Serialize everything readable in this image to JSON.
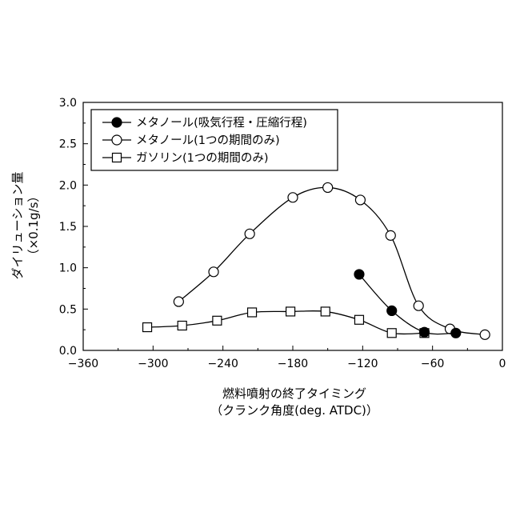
{
  "chart_data": {
    "type": "line",
    "title": "",
    "xlabel": "燃料噴射の終了タイミング",
    "xlabel_sub": "（クランク角度(deg. ATDC)）",
    "ylabel": "ダイリューション量",
    "ylabel_sub": "（×0.1g/s）",
    "xlim": [
      -360,
      0
    ],
    "ylim": [
      0,
      3.0
    ],
    "x_ticks": [
      -360,
      -300,
      -240,
      -180,
      -120,
      -60,
      0
    ],
    "x_tick_labels": [
      "−360",
      "−300",
      "−240",
      "−180",
      "−120",
      "−60",
      "0"
    ],
    "y_ticks": [
      0,
      0.5,
      1.0,
      1.5,
      2.0,
      2.5,
      3.0
    ],
    "y_tick_labels": [
      "0.0",
      "0.5",
      "1.0",
      "1.5",
      "2.0",
      "2.5",
      "3.0"
    ],
    "grid": false,
    "legend_position": "top-left",
    "series": [
      {
        "name": "メタノール(吸気行程・圧縮行程)",
        "marker": "filled-circle",
        "x": [
          -123,
          -95,
          -67,
          -40
        ],
        "y": [
          0.92,
          0.48,
          0.22,
          0.21
        ]
      },
      {
        "name": "メタノール(1つの期間のみ)",
        "marker": "open-circle",
        "x": [
          -278,
          -248,
          -217,
          -180,
          -150,
          -122,
          -96,
          -72,
          -45,
          -15
        ],
        "y": [
          0.59,
          0.95,
          1.41,
          1.85,
          1.97,
          1.82,
          1.39,
          0.54,
          0.26,
          0.19
        ]
      },
      {
        "name": "ガソリン(1つの期間のみ)",
        "marker": "open-square",
        "x": [
          -305,
          -275,
          -245,
          -215,
          -182,
          -152,
          -123,
          -95,
          -67
        ],
        "y": [
          0.28,
          0.3,
          0.36,
          0.46,
          0.47,
          0.47,
          0.37,
          0.21,
          0.21
        ]
      }
    ],
    "colors": {
      "line": "#000000",
      "marker_fill_open": "#ffffff",
      "marker_fill_filled": "#000000"
    }
  }
}
